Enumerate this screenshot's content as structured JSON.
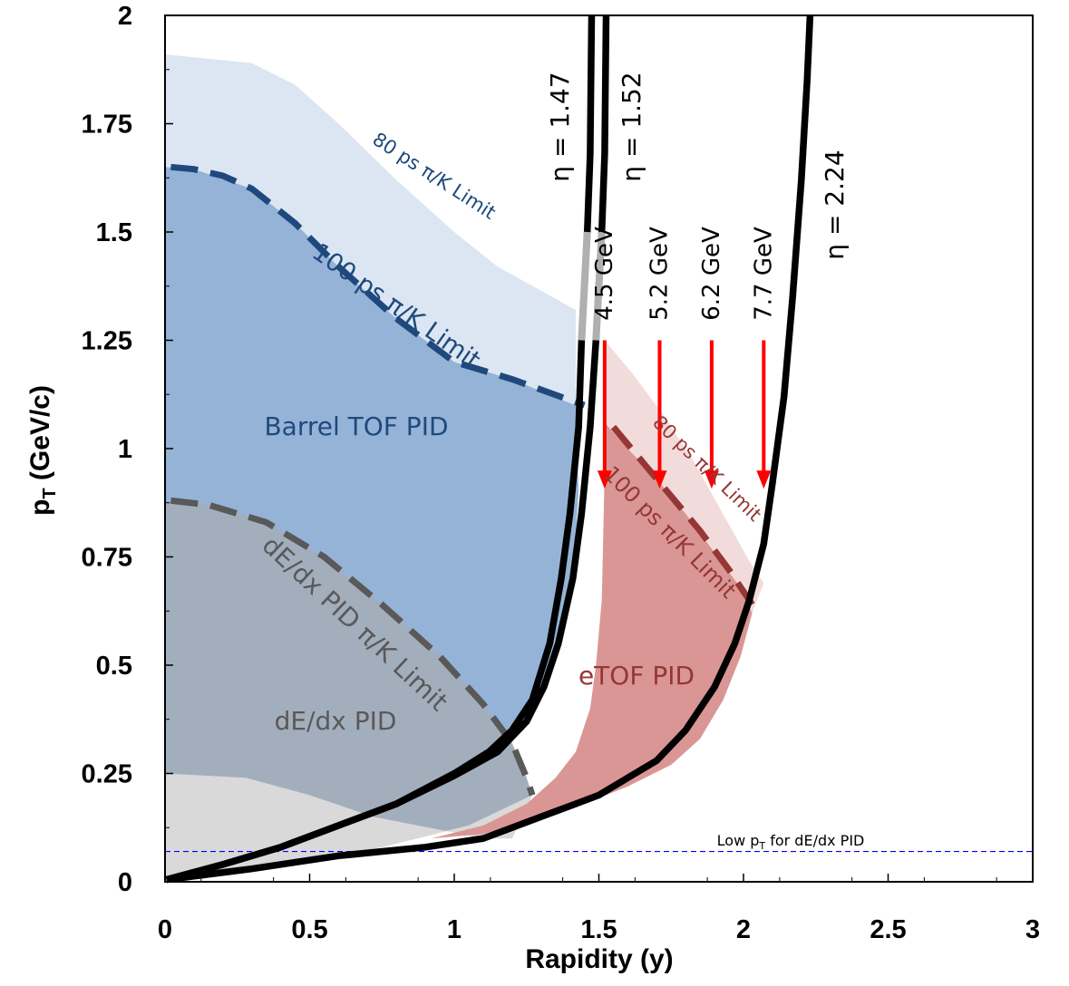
{
  "chart_data": {
    "type": "area",
    "xlabel": "Rapidity (y)",
    "ylabel": "p",
    "ylabel_sub": "T",
    "ylabel_unit": " (GeV/c)",
    "xlim": [
      0,
      3
    ],
    "ylim": [
      0,
      2
    ],
    "xticks": [
      "0",
      "0.5",
      "1",
      "1.5",
      "2",
      "2.5",
      "3"
    ],
    "yticks": [
      "0",
      "0.25",
      "0.5",
      "0.75",
      "1",
      "1.25",
      "1.5",
      "1.75",
      "2"
    ],
    "regions": [
      {
        "name": "Barrel TOF PID",
        "color": "#95b3d7",
        "points": [
          [
            0,
            1.65
          ],
          [
            0.1,
            1.645
          ],
          [
            0.2,
            1.63
          ],
          [
            0.3,
            1.6
          ],
          [
            0.45,
            1.52
          ],
          [
            0.6,
            1.42
          ],
          [
            0.8,
            1.3
          ],
          [
            1.0,
            1.2
          ],
          [
            1.2,
            1.16
          ],
          [
            1.42,
            1.1
          ],
          [
            1.43,
            0.9
          ],
          [
            1.41,
            0.7
          ],
          [
            1.35,
            0.52
          ],
          [
            1.3,
            0.43
          ],
          [
            1.19,
            0.33
          ],
          [
            0,
            0.33
          ]
        ]
      },
      {
        "name": "80 ps barrel",
        "color": "#dce6f2",
        "points": [
          [
            0,
            1.91
          ],
          [
            0.3,
            1.89
          ],
          [
            0.45,
            1.84
          ],
          [
            0.6,
            1.75
          ],
          [
            0.8,
            1.62
          ],
          [
            1.0,
            1.5
          ],
          [
            1.15,
            1.42
          ],
          [
            1.42,
            1.32
          ],
          [
            1.42,
            1.1
          ],
          [
            1.2,
            1.16
          ],
          [
            1.0,
            1.2
          ],
          [
            0.8,
            1.3
          ],
          [
            0.6,
            1.42
          ],
          [
            0.45,
            1.52
          ],
          [
            0.3,
            1.6
          ],
          [
            0.1,
            1.645
          ],
          [
            0,
            1.65
          ]
        ]
      },
      {
        "name": "dE/dx PID",
        "color": "#a3aebd",
        "points": [
          [
            0,
            0.88
          ],
          [
            0.15,
            0.87
          ],
          [
            0.35,
            0.83
          ],
          [
            0.55,
            0.75
          ],
          [
            0.75,
            0.64
          ],
          [
            0.95,
            0.52
          ],
          [
            1.1,
            0.41
          ],
          [
            1.2,
            0.32
          ],
          [
            1.25,
            0.24
          ],
          [
            1.27,
            0.2
          ],
          [
            1.05,
            0.13
          ],
          [
            0.75,
            0.08
          ],
          [
            0.5,
            0.05
          ],
          [
            0.25,
            0.03
          ],
          [
            0,
            0.01
          ]
        ]
      },
      {
        "name": "low dE/dx",
        "color": "#d9d9d9",
        "points": [
          [
            0,
            0.25
          ],
          [
            0.28,
            0.24
          ],
          [
            0.5,
            0.2
          ],
          [
            0.72,
            0.15
          ],
          [
            0.95,
            0.12
          ],
          [
            1.1,
            0.1
          ],
          [
            1.2,
            0.1
          ],
          [
            1.27,
            0.2
          ],
          [
            1.05,
            0.13
          ],
          [
            0.75,
            0.08
          ],
          [
            0.5,
            0.05
          ],
          [
            0.25,
            0.03
          ],
          [
            0,
            0.01
          ]
        ]
      },
      {
        "name": "eTOF PID",
        "color": "#da9694",
        "points": [
          [
            1.52,
            1.06
          ],
          [
            1.6,
            1.0
          ],
          [
            1.7,
            0.93
          ],
          [
            1.8,
            0.85
          ],
          [
            1.9,
            0.76
          ],
          [
            2.0,
            0.67
          ],
          [
            2.03,
            0.62
          ],
          [
            1.99,
            0.52
          ],
          [
            1.93,
            0.42
          ],
          [
            1.85,
            0.33
          ],
          [
            1.75,
            0.27
          ],
          [
            1.6,
            0.22
          ],
          [
            1.45,
            0.18
          ],
          [
            1.3,
            0.15
          ],
          [
            1.1,
            0.11
          ],
          [
            0.92,
            0.1
          ],
          [
            1.1,
            0.13
          ],
          [
            1.25,
            0.18
          ],
          [
            1.35,
            0.24
          ],
          [
            1.42,
            0.3
          ],
          [
            1.47,
            0.4
          ],
          [
            1.49,
            0.5
          ],
          [
            1.51,
            0.65
          ],
          [
            1.515,
            0.8
          ],
          [
            1.52,
            0.95
          ]
        ]
      },
      {
        "name": "80 ps endcap",
        "color": "#f2dcdb",
        "points": [
          [
            1.52,
            1.25
          ],
          [
            1.62,
            1.17
          ],
          [
            1.72,
            1.08
          ],
          [
            1.82,
            0.98
          ],
          [
            1.92,
            0.86
          ],
          [
            2.02,
            0.74
          ],
          [
            2.07,
            0.69
          ],
          [
            2.03,
            0.62
          ],
          [
            2.0,
            0.67
          ],
          [
            1.9,
            0.76
          ],
          [
            1.8,
            0.85
          ],
          [
            1.7,
            0.93
          ],
          [
            1.6,
            1.0
          ],
          [
            1.52,
            1.06
          ]
        ]
      }
    ],
    "limit_curves": [
      {
        "name": "100 ps barrel",
        "color": "#1f497d",
        "points": [
          [
            0.02,
            1.65
          ],
          [
            0.1,
            1.645
          ],
          [
            0.2,
            1.63
          ],
          [
            0.3,
            1.6
          ],
          [
            0.45,
            1.52
          ],
          [
            0.6,
            1.42
          ],
          [
            0.8,
            1.3
          ],
          [
            1.0,
            1.2
          ],
          [
            1.2,
            1.16
          ],
          [
            1.45,
            1.1
          ]
        ]
      },
      {
        "name": "dE/dx limit",
        "color": "#595959",
        "points": [
          [
            0.02,
            0.88
          ],
          [
            0.15,
            0.87
          ],
          [
            0.35,
            0.83
          ],
          [
            0.55,
            0.75
          ],
          [
            0.75,
            0.64
          ],
          [
            0.95,
            0.52
          ],
          [
            1.1,
            0.41
          ],
          [
            1.2,
            0.32
          ],
          [
            1.25,
            0.24
          ],
          [
            1.27,
            0.2
          ]
        ]
      },
      {
        "name": "100 ps endcap",
        "color": "#953735",
        "points": [
          [
            1.55,
            1.05
          ],
          [
            1.65,
            0.97
          ],
          [
            1.75,
            0.89
          ],
          [
            1.85,
            0.81
          ],
          [
            1.95,
            0.72
          ],
          [
            2.03,
            0.64
          ]
        ]
      }
    ],
    "eta_curves": [
      {
        "label": "η = 1.47",
        "color": "#000000",
        "points": [
          [
            0.005,
            0.005
          ],
          [
            0.2,
            0.04
          ],
          [
            0.4,
            0.08
          ],
          [
            0.6,
            0.13
          ],
          [
            0.8,
            0.18
          ],
          [
            1.0,
            0.25
          ],
          [
            1.12,
            0.3
          ],
          [
            1.2,
            0.35
          ],
          [
            1.27,
            0.42
          ],
          [
            1.33,
            0.55
          ],
          [
            1.37,
            0.7
          ],
          [
            1.4,
            0.85
          ],
          [
            1.43,
            1.05
          ],
          [
            1.44,
            1.25
          ],
          [
            1.46,
            1.5
          ],
          [
            1.47,
            1.68
          ],
          [
            1.475,
            2.0
          ]
        ]
      },
      {
        "label": "η = 1.52",
        "color": "#000000",
        "points": [
          [
            0.005,
            0.005
          ],
          [
            0.2,
            0.04
          ],
          [
            0.4,
            0.08
          ],
          [
            0.6,
            0.13
          ],
          [
            0.8,
            0.18
          ],
          [
            1.0,
            0.245
          ],
          [
            1.15,
            0.3
          ],
          [
            1.25,
            0.37
          ],
          [
            1.31,
            0.45
          ],
          [
            1.36,
            0.55
          ],
          [
            1.41,
            0.7
          ],
          [
            1.44,
            0.85
          ],
          [
            1.47,
            1.05
          ],
          [
            1.49,
            1.25
          ],
          [
            1.51,
            1.5
          ],
          [
            1.52,
            1.68
          ],
          [
            1.525,
            2.0
          ]
        ]
      },
      {
        "label": "η = 2.24",
        "color": "#000000",
        "points": [
          [
            0.005,
            0.005
          ],
          [
            0.3,
            0.03
          ],
          [
            0.6,
            0.06
          ],
          [
            0.9,
            0.08
          ],
          [
            1.1,
            0.1
          ],
          [
            1.3,
            0.15
          ],
          [
            1.5,
            0.2
          ],
          [
            1.7,
            0.28
          ],
          [
            1.8,
            0.35
          ],
          [
            1.9,
            0.45
          ],
          [
            1.97,
            0.55
          ],
          [
            2.02,
            0.65
          ],
          [
            2.07,
            0.78
          ],
          [
            2.1,
            0.92
          ],
          [
            2.14,
            1.12
          ],
          [
            2.17,
            1.35
          ],
          [
            2.2,
            1.62
          ],
          [
            2.22,
            1.85
          ],
          [
            2.23,
            2.0
          ]
        ]
      }
    ],
    "gray_segments": [
      {
        "eta": "1.47",
        "y0": 1.25,
        "y1": 1.55
      },
      {
        "eta": "1.52",
        "y0": 1.25,
        "y1": 1.55
      }
    ],
    "energies": [
      {
        "label": "4.5 GeV",
        "x": 1.52
      },
      {
        "label": "5.2 GeV",
        "x": 1.71
      },
      {
        "label": "6.2 GeV",
        "x": 1.89
      },
      {
        "label": "7.7 GeV",
        "x": 2.07
      }
    ],
    "arrow_range": [
      1.25,
      0.92
    ],
    "lowpt_line": {
      "y": 0.07,
      "color": "#0000ff"
    },
    "labels": {
      "barrel_tof": "Barrel TOF PID",
      "dedx": "dE/dx PID",
      "etof": "eTOF PID",
      "limit_80_barrel": "80 ps π/K Limit",
      "limit_100_barrel": "100 ps π/K Limit",
      "limit_80_endcap": "80 ps π/K Limit",
      "limit_100_endcap": "100 ps π/K Limit",
      "limit_dedx": "dE/dx PID π/K Limit",
      "lowpt_prefix": "Low p",
      "lowpt_sub": "T",
      "lowpt_suffix": " for dE/dx PID"
    }
  }
}
